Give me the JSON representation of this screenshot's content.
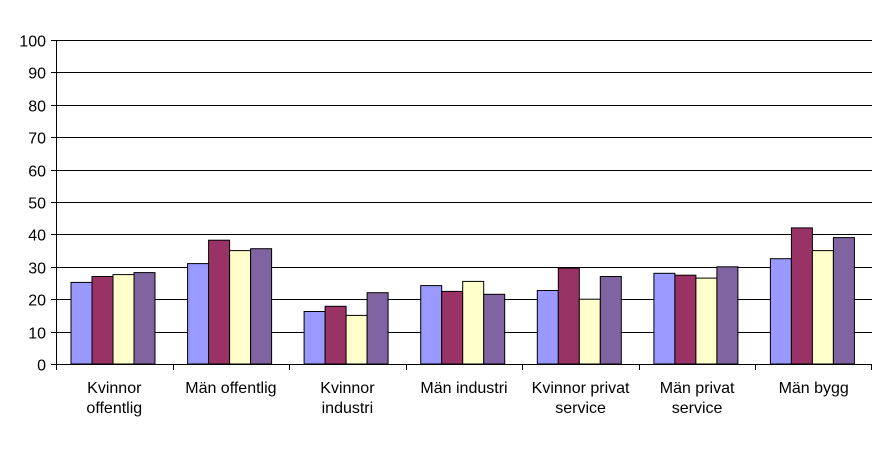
{
  "chart_data": {
    "type": "bar",
    "title": "",
    "xlabel": "",
    "ylabel": "",
    "ylim": [
      0,
      100
    ],
    "yticks": [
      0,
      10,
      20,
      30,
      40,
      50,
      60,
      70,
      80,
      90,
      100
    ],
    "grid": true,
    "legend": "none",
    "categories": [
      [
        "Kvinnor",
        "offentlig"
      ],
      [
        "Män offentlig"
      ],
      [
        "Kvinnor",
        "industri"
      ],
      [
        "Män industri"
      ],
      [
        "Kvinnor privat",
        "service"
      ],
      [
        "Män privat",
        "service"
      ],
      [
        "Män bygg"
      ]
    ],
    "series": [
      {
        "color": "#9999ff",
        "values": [
          25.2,
          31,
          16.2,
          24.2,
          22.7,
          28,
          32.5
        ]
      },
      {
        "color": "#993366",
        "values": [
          27,
          38.2,
          17.8,
          22.4,
          29.6,
          27.4,
          42
        ]
      },
      {
        "color": "#ffffcc",
        "values": [
          27.6,
          35,
          15,
          25.5,
          20,
          26.5,
          35
        ]
      },
      {
        "color": "#8064a2",
        "values": [
          28.2,
          35.6,
          22,
          21.5,
          27,
          30,
          39
        ]
      }
    ]
  }
}
